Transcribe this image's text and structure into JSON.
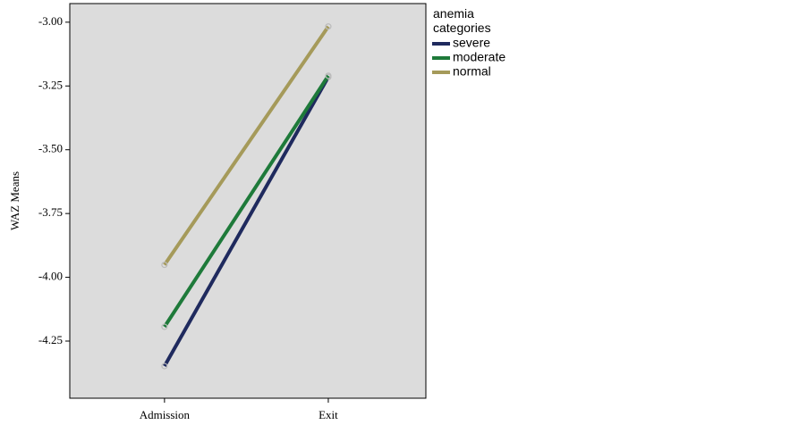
{
  "chart_data": {
    "type": "line",
    "y_label": "WAZ Means",
    "legend_title": "anemia categories",
    "legend_position": "right",
    "categories": [
      "Admission",
      "Exit"
    ],
    "series": [
      {
        "name": "severe",
        "color": "#1f2a5e",
        "values": [
          -4.348,
          -3.215
        ]
      },
      {
        "name": "moderate",
        "color": "#1e7a3a",
        "values": [
          -4.194,
          -3.21
        ]
      },
      {
        "name": "normal",
        "color": "#a59a5a",
        "values": [
          -3.951,
          -3.017
        ]
      }
    ],
    "ylim": [
      -4.474,
      -2.927
    ],
    "yticks": [
      {
        "value": -3.0,
        "label": "-3.00"
      },
      {
        "value": -3.25,
        "label": "-3.25"
      },
      {
        "value": -3.5,
        "label": "-3.50"
      },
      {
        "value": -3.75,
        "label": "-3.75"
      },
      {
        "value": -4.0,
        "label": "-4.00"
      },
      {
        "value": -4.25,
        "label": "-4.25"
      }
    ]
  }
}
